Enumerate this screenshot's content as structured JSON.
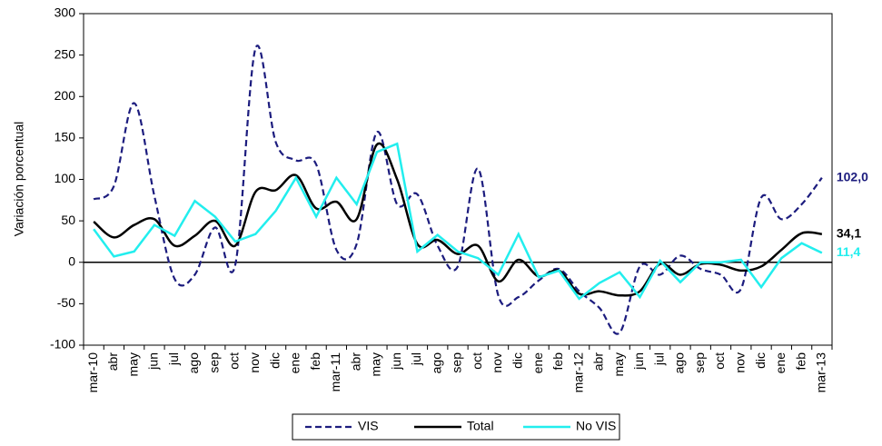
{
  "chart_data": {
    "type": "line",
    "y_label": "Variación porcentual",
    "categories": [
      "mar-10",
      "abr",
      "may",
      "jun",
      "jul",
      "ago",
      "sep",
      "oct",
      "nov",
      "dic",
      "ene",
      "feb",
      "mar-11",
      "abr",
      "may",
      "jun",
      "jul",
      "ago",
      "sep",
      "oct",
      "nov",
      "dic",
      "ene",
      "feb",
      "mar-12",
      "abr",
      "may",
      "jun",
      "jul",
      "ago",
      "sep",
      "oct",
      "nov",
      "dic",
      "ene",
      "feb",
      "mar-13"
    ],
    "series": [
      {
        "name": "VIS",
        "color": "#1c1c7e",
        "dashed": true,
        "smooth": true,
        "values": [
          76,
          92,
          192,
          80,
          -20,
          -15,
          42,
          -3,
          258,
          145,
          123,
          118,
          15,
          22,
          157,
          70,
          82,
          20,
          -5,
          113,
          -40,
          -42,
          -22,
          -8,
          -35,
          -55,
          -85,
          -5,
          -15,
          8,
          -8,
          -15,
          -32,
          78,
          52,
          70,
          102
        ],
        "value_labels": [
          null,
          null,
          null,
          null,
          null,
          null,
          null,
          null,
          null,
          null,
          null,
          null,
          null,
          null,
          null,
          null,
          null,
          null,
          null,
          null,
          null,
          null,
          null,
          null,
          null,
          null,
          null,
          null,
          null,
          null,
          null,
          null,
          null,
          null,
          null,
          null,
          "102,0"
        ]
      },
      {
        "name": "Total",
        "color": "#000000",
        "dashed": false,
        "smooth": true,
        "values": [
          49,
          30,
          45,
          52,
          20,
          32,
          50,
          20,
          85,
          87,
          105,
          65,
          73,
          52,
          142,
          100,
          22,
          27,
          10,
          20,
          -23,
          3,
          -17,
          -10,
          -38,
          -35,
          -40,
          -35,
          -2,
          -15,
          -2,
          -3,
          -10,
          -5,
          15,
          35,
          34.1
        ],
        "value_labels": [
          null,
          null,
          null,
          null,
          null,
          null,
          null,
          null,
          null,
          null,
          null,
          null,
          null,
          null,
          null,
          null,
          null,
          null,
          null,
          null,
          null,
          null,
          null,
          null,
          null,
          null,
          null,
          null,
          null,
          null,
          null,
          null,
          null,
          null,
          null,
          null,
          "34,1"
        ]
      },
      {
        "name": "No VIS",
        "color": "#22eeee",
        "dashed": false,
        "smooth": false,
        "values": [
          40,
          7,
          13,
          45,
          32,
          74,
          55,
          25,
          34,
          62,
          102,
          55,
          102,
          70,
          133,
          143,
          13,
          33,
          13,
          5,
          -15,
          34,
          -18,
          -10,
          -44,
          -25,
          -12,
          -42,
          2,
          -24,
          0,
          0,
          3,
          -30,
          5,
          23,
          11.4
        ],
        "value_labels": [
          null,
          null,
          null,
          null,
          null,
          null,
          null,
          null,
          null,
          null,
          null,
          null,
          null,
          null,
          null,
          null,
          null,
          null,
          null,
          null,
          null,
          null,
          null,
          null,
          null,
          null,
          null,
          null,
          null,
          null,
          null,
          null,
          null,
          null,
          null,
          null,
          "11,4"
        ]
      }
    ],
    "ylim": [
      -100,
      300
    ],
    "yticks": [
      -100,
      -50,
      0,
      50,
      100,
      150,
      200,
      250,
      300
    ],
    "grid": false,
    "legend": "bottom"
  }
}
